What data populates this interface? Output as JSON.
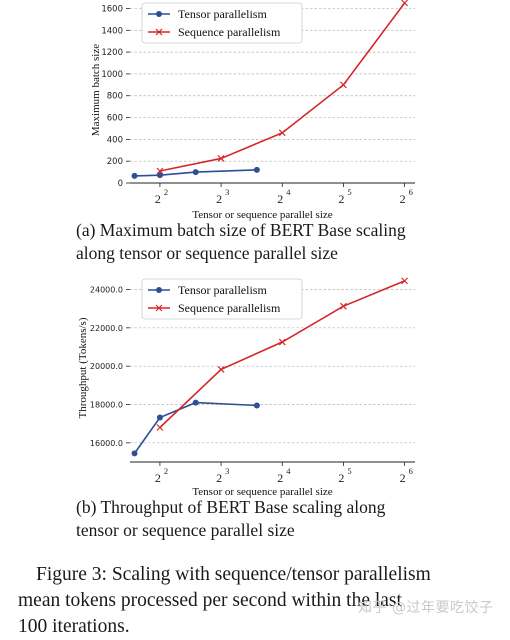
{
  "chart_data": [
    {
      "type": "line",
      "xscale": "log2",
      "xlabel": "Tensor or sequence parallel size",
      "ylabel": "Maximum batch size",
      "xticks": [
        4,
        8,
        16,
        32,
        64
      ],
      "xtick_labels": [
        "2",
        "2",
        "2",
        "2",
        "2"
      ],
      "xtick_exponents": [
        "2",
        "3",
        "4",
        "5",
        "6"
      ],
      "yticks": [
        0,
        200,
        400,
        600,
        800,
        1000,
        1200,
        1400,
        1600
      ],
      "ylim": [
        0,
        1650
      ],
      "grid": "horizontal dashed",
      "legend_position": "top-left",
      "series": [
        {
          "name": "Tensor parallelism",
          "color": "#2d4f96",
          "marker": "circle",
          "x": [
            3,
            4,
            6,
            12
          ],
          "y": [
            65,
            72,
            100,
            120
          ]
        },
        {
          "name": "Sequence parallelism",
          "color": "#d62728",
          "marker": "x",
          "x": [
            4,
            8,
            16,
            32,
            64
          ],
          "y": [
            110,
            225,
            460,
            900,
            1650
          ]
        }
      ]
    },
    {
      "type": "line",
      "xscale": "log2",
      "xlabel": "Tensor or sequence parallel size",
      "ylabel": "Throughput (Tokens/s)",
      "xticks": [
        4,
        8,
        16,
        32,
        64
      ],
      "xtick_labels": [
        "2",
        "2",
        "2",
        "2",
        "2"
      ],
      "xtick_exponents": [
        "2",
        "3",
        "4",
        "5",
        "6"
      ],
      "yticks": [
        16000,
        18000,
        20000,
        22000,
        24000
      ],
      "ytick_labels": [
        "16000.0",
        "18000.0",
        "20000.0",
        "22000.0",
        "24000.0"
      ],
      "ylim": [
        15000,
        24600
      ],
      "grid": "horizontal dashed",
      "legend_position": "top-left",
      "series": [
        {
          "name": "Tensor parallelism",
          "color": "#2d4f96",
          "marker": "circle",
          "x": [
            3,
            4,
            6,
            12
          ],
          "y": [
            15450,
            17320,
            18100,
            17950
          ]
        },
        {
          "name": "Sequence parallelism",
          "color": "#d62728",
          "marker": "x",
          "x": [
            4,
            8,
            16,
            32,
            64
          ],
          "y": [
            16800,
            19830,
            21260,
            23130,
            24450
          ]
        }
      ]
    }
  ],
  "captions": {
    "a": [
      "(a) Maximum batch size of BERT Base scaling",
      "along tensor or sequence parallel size"
    ],
    "b": [
      "(b) Throughput of BERT Base scaling along",
      "tensor or sequence parallel size"
    ]
  },
  "figure_caption": [
    "Figure 3: Scaling with sequence/tensor parallelism",
    "mean tokens processed per second within the last",
    "100 iterations."
  ],
  "watermark": "知乎 @过年要吃饺子"
}
